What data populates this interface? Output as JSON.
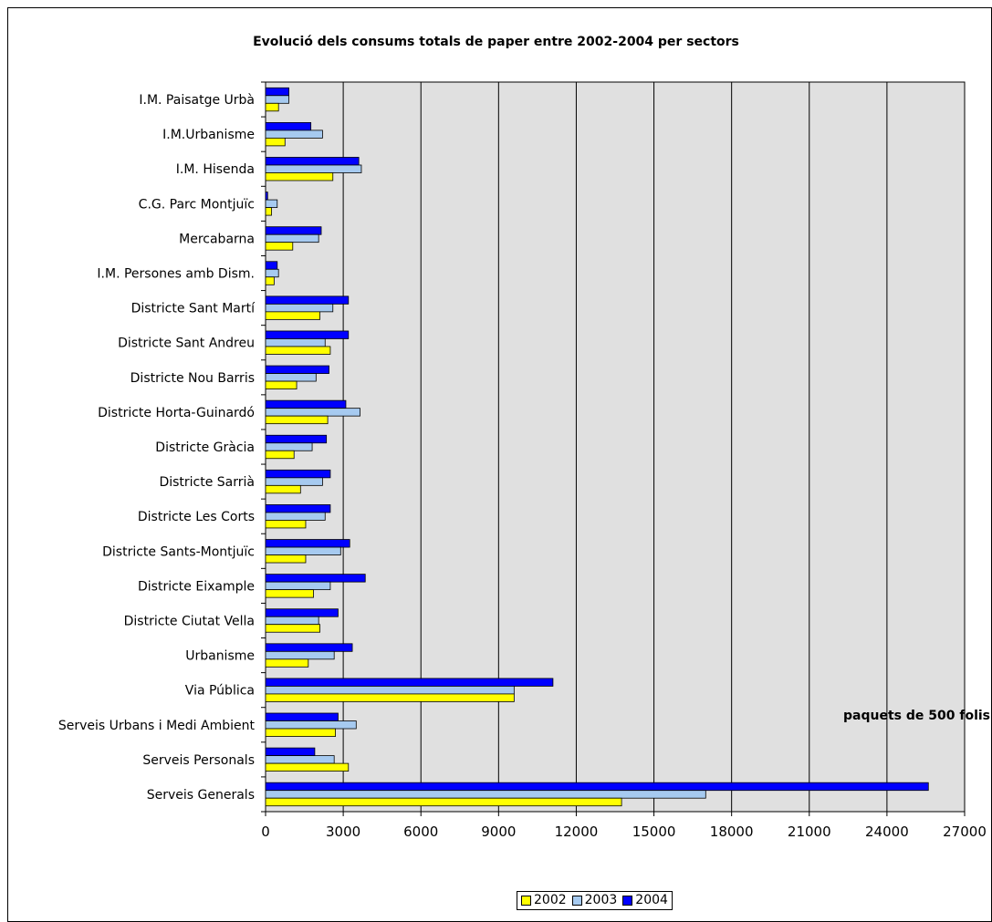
{
  "chart_data": {
    "type": "bar",
    "orientation": "horizontal",
    "title": "Evolució dels consums totals de paper entre 2002-2004 per sectors",
    "xlabel": "paquets de 500 folis",
    "ylabel": "",
    "xlim": [
      0,
      27000
    ],
    "xticks": [
      "0",
      "3000",
      "6000",
      "9000",
      "12000",
      "15000",
      "18000",
      "21000",
      "24000",
      "27000"
    ],
    "grid": "vertical",
    "legend_position": "bottom",
    "categories": [
      "I.M. Paisatge Urbà",
      "I.M.Urbanisme",
      "I.M. Hisenda",
      "C.G. Parc Montjuïc",
      "Mercabarna",
      "I.M. Persones amb Dism.",
      "Districte Sant Martí",
      "Districte Sant Andreu",
      "Districte Nou Barris",
      "Districte Horta-Guinardó",
      "Districte Gràcia",
      "Districte Sarrià",
      "Districte Les Corts",
      "Districte Sants-Montjuïc",
      "Districte Eixample",
      "Districte Ciutat Vella",
      "Urbanisme",
      "Via Pública",
      "Serveis Urbans i Medi Ambient",
      "Serveis Personals",
      "Serveis Generals"
    ],
    "series": [
      {
        "name": "2002",
        "color": "#ffff00",
        "values": [
          500,
          750,
          2600,
          230,
          1050,
          330,
          2100,
          2500,
          1200,
          2400,
          1100,
          1350,
          1550,
          1550,
          1850,
          2100,
          1650,
          9600,
          2700,
          3200,
          13750
        ]
      },
      {
        "name": "2003",
        "color": "#a6caf0",
        "values": [
          900,
          2200,
          3700,
          450,
          2050,
          500,
          2600,
          2300,
          1950,
          3650,
          1800,
          2200,
          2300,
          2900,
          2500,
          2050,
          2650,
          9600,
          3500,
          2650,
          17000
        ]
      },
      {
        "name": "2004",
        "color": "#0000ff",
        "values": [
          900,
          1750,
          3600,
          80,
          2150,
          450,
          3200,
          3200,
          2450,
          3100,
          2350,
          2500,
          2500,
          3250,
          3850,
          2800,
          3350,
          11100,
          2800,
          1900,
          25600
        ]
      }
    ]
  }
}
